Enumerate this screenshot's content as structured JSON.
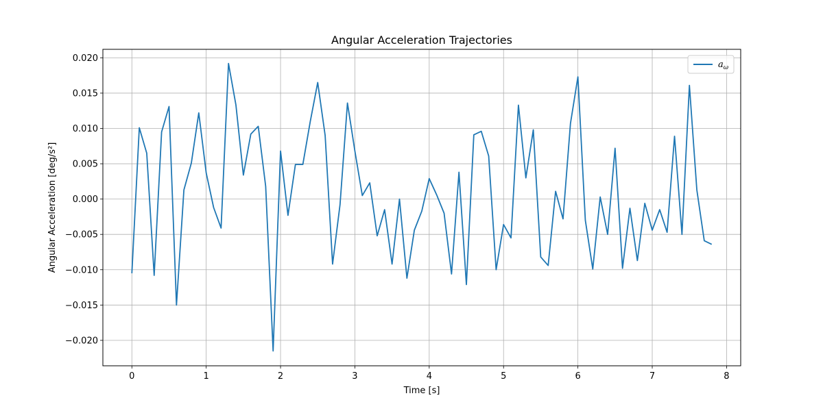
{
  "chart_data": {
    "type": "line",
    "title": "Angular Acceleration Trajectories",
    "xlabel": "Time [s]",
    "ylabel": "Angular Acceleration [deg/s²]",
    "xlim": [
      -0.39,
      8.19
    ],
    "ylim": [
      -0.0236,
      0.0212
    ],
    "xticks": [
      0,
      1,
      2,
      3,
      4,
      5,
      6,
      7,
      8
    ],
    "yticks": [
      -0.02,
      -0.015,
      -0.01,
      -0.005,
      0.0,
      0.005,
      0.01,
      0.015,
      0.02
    ],
    "ytick_labels": [
      "−0.020",
      "−0.015",
      "−0.010",
      "−0.005",
      "0.000",
      "0.005",
      "0.010",
      "0.015",
      "0.020"
    ],
    "grid": true,
    "legend": {
      "position": "upper-right"
    },
    "series": [
      {
        "name_main": "a",
        "name_sub": "ω",
        "color": "#1f77b4",
        "x": [
          0.0,
          0.1,
          0.2,
          0.3,
          0.4,
          0.5,
          0.6,
          0.7,
          0.8,
          0.9,
          1.0,
          1.1,
          1.2,
          1.3,
          1.4,
          1.5,
          1.6,
          1.7,
          1.8,
          1.9,
          2.0,
          2.1,
          2.2,
          2.3,
          2.4,
          2.5,
          2.6,
          2.7,
          2.8,
          2.9,
          3.0,
          3.1,
          3.2,
          3.3,
          3.4,
          3.5,
          3.6,
          3.7,
          3.8,
          3.9,
          4.0,
          4.1,
          4.2,
          4.3,
          4.4,
          4.5,
          4.6,
          4.7,
          4.8,
          4.9,
          5.0,
          5.1,
          5.2,
          5.3,
          5.4,
          5.5,
          5.6,
          5.7,
          5.8,
          5.9,
          6.0,
          6.1,
          6.2,
          6.3,
          6.4,
          6.5,
          6.6,
          6.7,
          6.8,
          6.9,
          7.0,
          7.1,
          7.2,
          7.3,
          7.4,
          7.5,
          7.6,
          7.7,
          7.8
        ],
        "y": [
          -0.0105,
          0.0101,
          0.0065,
          -0.0108,
          0.0095,
          0.0131,
          -0.015,
          0.0013,
          0.0051,
          0.0122,
          0.0037,
          -0.0012,
          -0.0041,
          0.0192,
          0.0133,
          0.0034,
          0.0092,
          0.0103,
          0.0018,
          -0.0215,
          0.0068,
          -0.0023,
          0.0049,
          0.0049,
          0.011,
          0.0165,
          0.009,
          -0.0092,
          -0.0008,
          0.0136,
          0.0068,
          0.0005,
          0.0023,
          -0.0052,
          -0.0015,
          -0.0092,
          0.0,
          -0.0112,
          -0.0044,
          -0.0017,
          0.0029,
          0.0006,
          -0.002,
          -0.0106,
          0.0038,
          -0.0121,
          0.0091,
          0.0096,
          0.0061,
          -0.01,
          -0.0036,
          -0.0055,
          0.0133,
          0.003,
          0.0098,
          -0.0082,
          -0.0094,
          0.0011,
          -0.0028,
          0.0107,
          0.0173,
          -0.003,
          -0.0099,
          0.0003,
          -0.005,
          0.0072,
          -0.0098,
          -0.0013,
          -0.0087,
          -0.0006,
          -0.0044,
          -0.0015,
          -0.0047,
          0.0089,
          -0.005,
          0.0161,
          0.0013,
          -0.0059,
          -0.0064
        ]
      }
    ]
  }
}
